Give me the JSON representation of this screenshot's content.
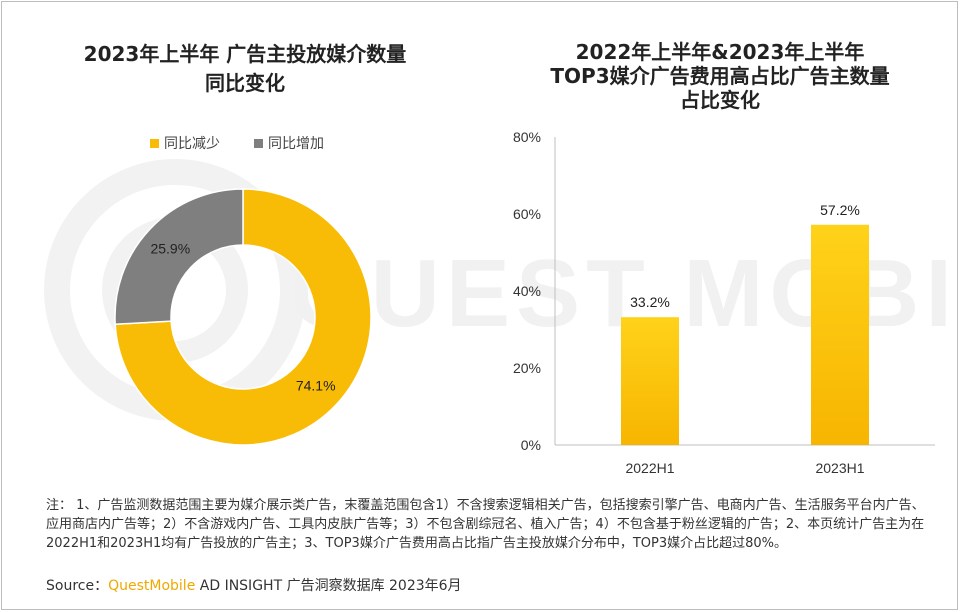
{
  "watermark": "QUEST MOBILE",
  "left_title": [
    "2023年上半年 广告主投放媒介数量",
    "同比变化"
  ],
  "right_title": [
    "2022年上半年&2023年上半年",
    "TOP3媒介广告费用高占比广告主数量",
    "占比变化"
  ],
  "colors": {
    "yellow": "#f9bc06",
    "gray": "#7f7f7f",
    "axis": "#bfbfbf",
    "brand": "#f0a800"
  },
  "chart_data": [
    {
      "type": "pie",
      "donut": true,
      "legend_placement": "top",
      "slices": [
        {
          "name": "同比减少",
          "value": 74.1,
          "label": "74.1%"
        },
        {
          "name": "同比增加",
          "value": 25.9,
          "label": "25.9%"
        }
      ]
    },
    {
      "type": "bar",
      "categories": [
        "2022H1",
        "2023H1"
      ],
      "values": [
        33.2,
        57.2
      ],
      "value_labels": [
        "33.2%",
        "57.2%"
      ],
      "ylim": [
        0,
        80
      ],
      "yticks": [
        "0%",
        "20%",
        "40%",
        "60%",
        "80%"
      ],
      "grid": false
    }
  ],
  "notes": "注： 1、广告监测数据范围主要为媒介展示类广告，末覆盖范围包含1）不含搜索逻辑相关广告，包括搜索引擎广告、电商内广告、生活服务平台内广告、应用商店内广告等；2）不含游戏内广告、工具内皮肤广告等；3）不包含剧综冠名、植入广告；4）不包含基于粉丝逻辑的广告；2、本页统计广告主为在2022H1和2023H1均有广告投放的广告主；3、TOP3媒介广告费用高占比指广告主投放媒介分布中，TOP3媒介占比超过80%。",
  "source": {
    "label": "Source：",
    "brand": "QuestMobile",
    "rest": " AD INSIGHT 广告洞察数据库 2023年6月"
  }
}
